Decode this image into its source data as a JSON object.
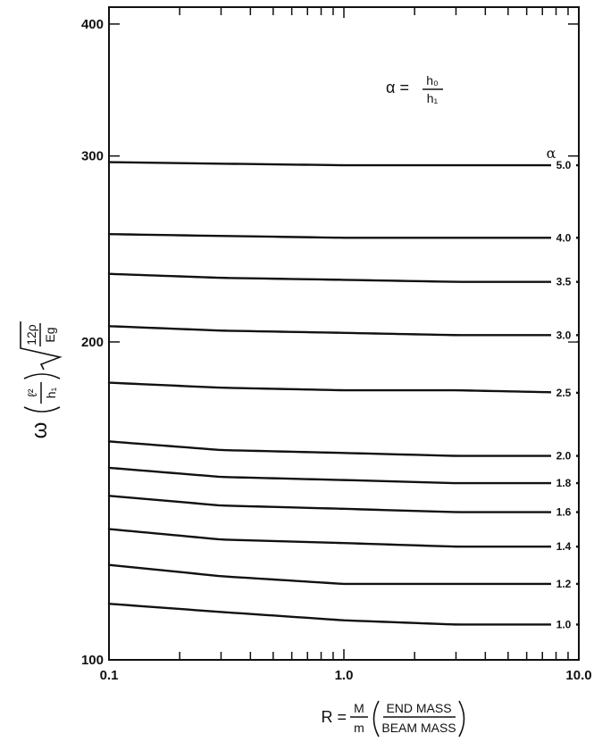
{
  "chart_data": {
    "type": "line",
    "x_scale": "log",
    "y_scale": "log",
    "xlim": [
      0.1,
      10.0
    ],
    "ylim": [
      100,
      415
    ],
    "grid": false,
    "x_ticks": [
      {
        "value": 0.1,
        "label": "0.1"
      },
      {
        "value": 1.0,
        "label": "1.0"
      },
      {
        "value": 10.0,
        "label": "10.0"
      }
    ],
    "y_ticks": [
      {
        "value": 100,
        "label": "100"
      },
      {
        "value": 200,
        "label": "200"
      },
      {
        "value": 300,
        "label": "300"
      },
      {
        "value": 400,
        "label": "400"
      }
    ],
    "xlabel": {
      "prefix": "R =",
      "fraction_num": "M",
      "fraction_den": "m",
      "paren_num": "END MASS",
      "paren_den": "BEAM MASS"
    },
    "ylabel": {
      "omega": "ω",
      "l_squared": "ℓ²",
      "h_one": "h₁",
      "radicand_num": "12ρ",
      "radicand_den": "Eg"
    },
    "annotation": {
      "lhs": "α =",
      "num": "h₀",
      "den": "h₁"
    },
    "series_header": "α",
    "series": [
      {
        "name": "5.0",
        "x": [
          0.1,
          0.3,
          1.0,
          3.0,
          10.0
        ],
        "y": [
          296,
          295,
          294,
          294,
          294
        ]
      },
      {
        "name": "4.0",
        "x": [
          0.1,
          0.3,
          1.0,
          3.0,
          10.0
        ],
        "y": [
          253,
          252,
          251,
          251,
          251
        ]
      },
      {
        "name": "3.5",
        "x": [
          0.1,
          0.3,
          1.0,
          3.0,
          10.0
        ],
        "y": [
          232,
          230,
          229,
          228,
          228
        ]
      },
      {
        "name": "3.0",
        "x": [
          0.1,
          0.3,
          1.0,
          3.0,
          10.0
        ],
        "y": [
          207,
          205,
          204,
          203,
          203
        ]
      },
      {
        "name": "2.5",
        "x": [
          0.1,
          0.3,
          1.0,
          3.0,
          10.0
        ],
        "y": [
          183,
          181,
          180,
          180,
          179
        ]
      },
      {
        "name": "2.0",
        "x": [
          0.1,
          0.3,
          1.0,
          3.0,
          10.0
        ],
        "y": [
          161,
          158,
          157,
          156,
          156
        ]
      },
      {
        "name": "1.8",
        "x": [
          0.1,
          0.3,
          1.0,
          3.0,
          10.0
        ],
        "y": [
          152,
          149,
          148,
          147,
          147
        ]
      },
      {
        "name": "1.6",
        "x": [
          0.1,
          0.3,
          1.0,
          3.0,
          10.0
        ],
        "y": [
          143,
          140,
          139,
          138,
          138
        ]
      },
      {
        "name": "1.4",
        "x": [
          0.1,
          0.3,
          1.0,
          3.0,
          10.0
        ],
        "y": [
          133,
          130,
          129,
          128,
          128
        ]
      },
      {
        "name": "1.2",
        "x": [
          0.1,
          0.3,
          1.0,
          3.0,
          10.0
        ],
        "y": [
          123,
          120,
          118,
          118,
          118
        ]
      },
      {
        "name": "1.0",
        "x": [
          0.1,
          0.3,
          1.0,
          3.0,
          10.0
        ],
        "y": [
          113,
          111,
          109,
          108,
          108
        ]
      }
    ]
  }
}
